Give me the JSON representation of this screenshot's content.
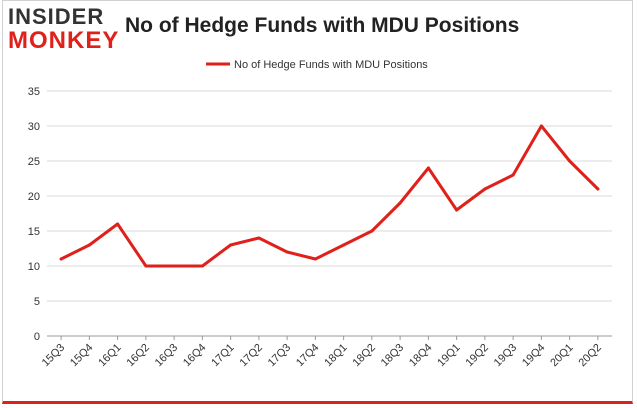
{
  "header": {
    "logo_top": "INSIDER",
    "logo_bottom": "MONKEY",
    "title": "No of Hedge Funds with MDU Positions"
  },
  "colors": {
    "line": "#e0201a",
    "grid": "#d9d9d9",
    "logo_dark": "#333333",
    "logo_red": "#e0201a"
  },
  "chart_data": {
    "type": "line",
    "title": "No of Hedge Funds with MDU Positions",
    "legend_position": "top-center",
    "grid": true,
    "xlabel": "",
    "ylabel": "",
    "ylim": [
      0,
      35
    ],
    "yticks": [
      0,
      5,
      10,
      15,
      20,
      25,
      30,
      35
    ],
    "categories": [
      "15Q3",
      "15Q4",
      "16Q1",
      "16Q2",
      "16Q3",
      "16Q4",
      "17Q1",
      "17Q2",
      "17Q3",
      "17Q4",
      "18Q1",
      "18Q2",
      "18Q3",
      "18Q4",
      "19Q1",
      "19Q2",
      "19Q3",
      "19Q4",
      "20Q1",
      "20Q2"
    ],
    "series": [
      {
        "name": "No of Hedge Funds with MDU Positions",
        "values": [
          11,
          13,
          16,
          10,
          10,
          10,
          13,
          14,
          12,
          11,
          13,
          15,
          19,
          24,
          18,
          21,
          23,
          30,
          25,
          21
        ]
      }
    ]
  }
}
